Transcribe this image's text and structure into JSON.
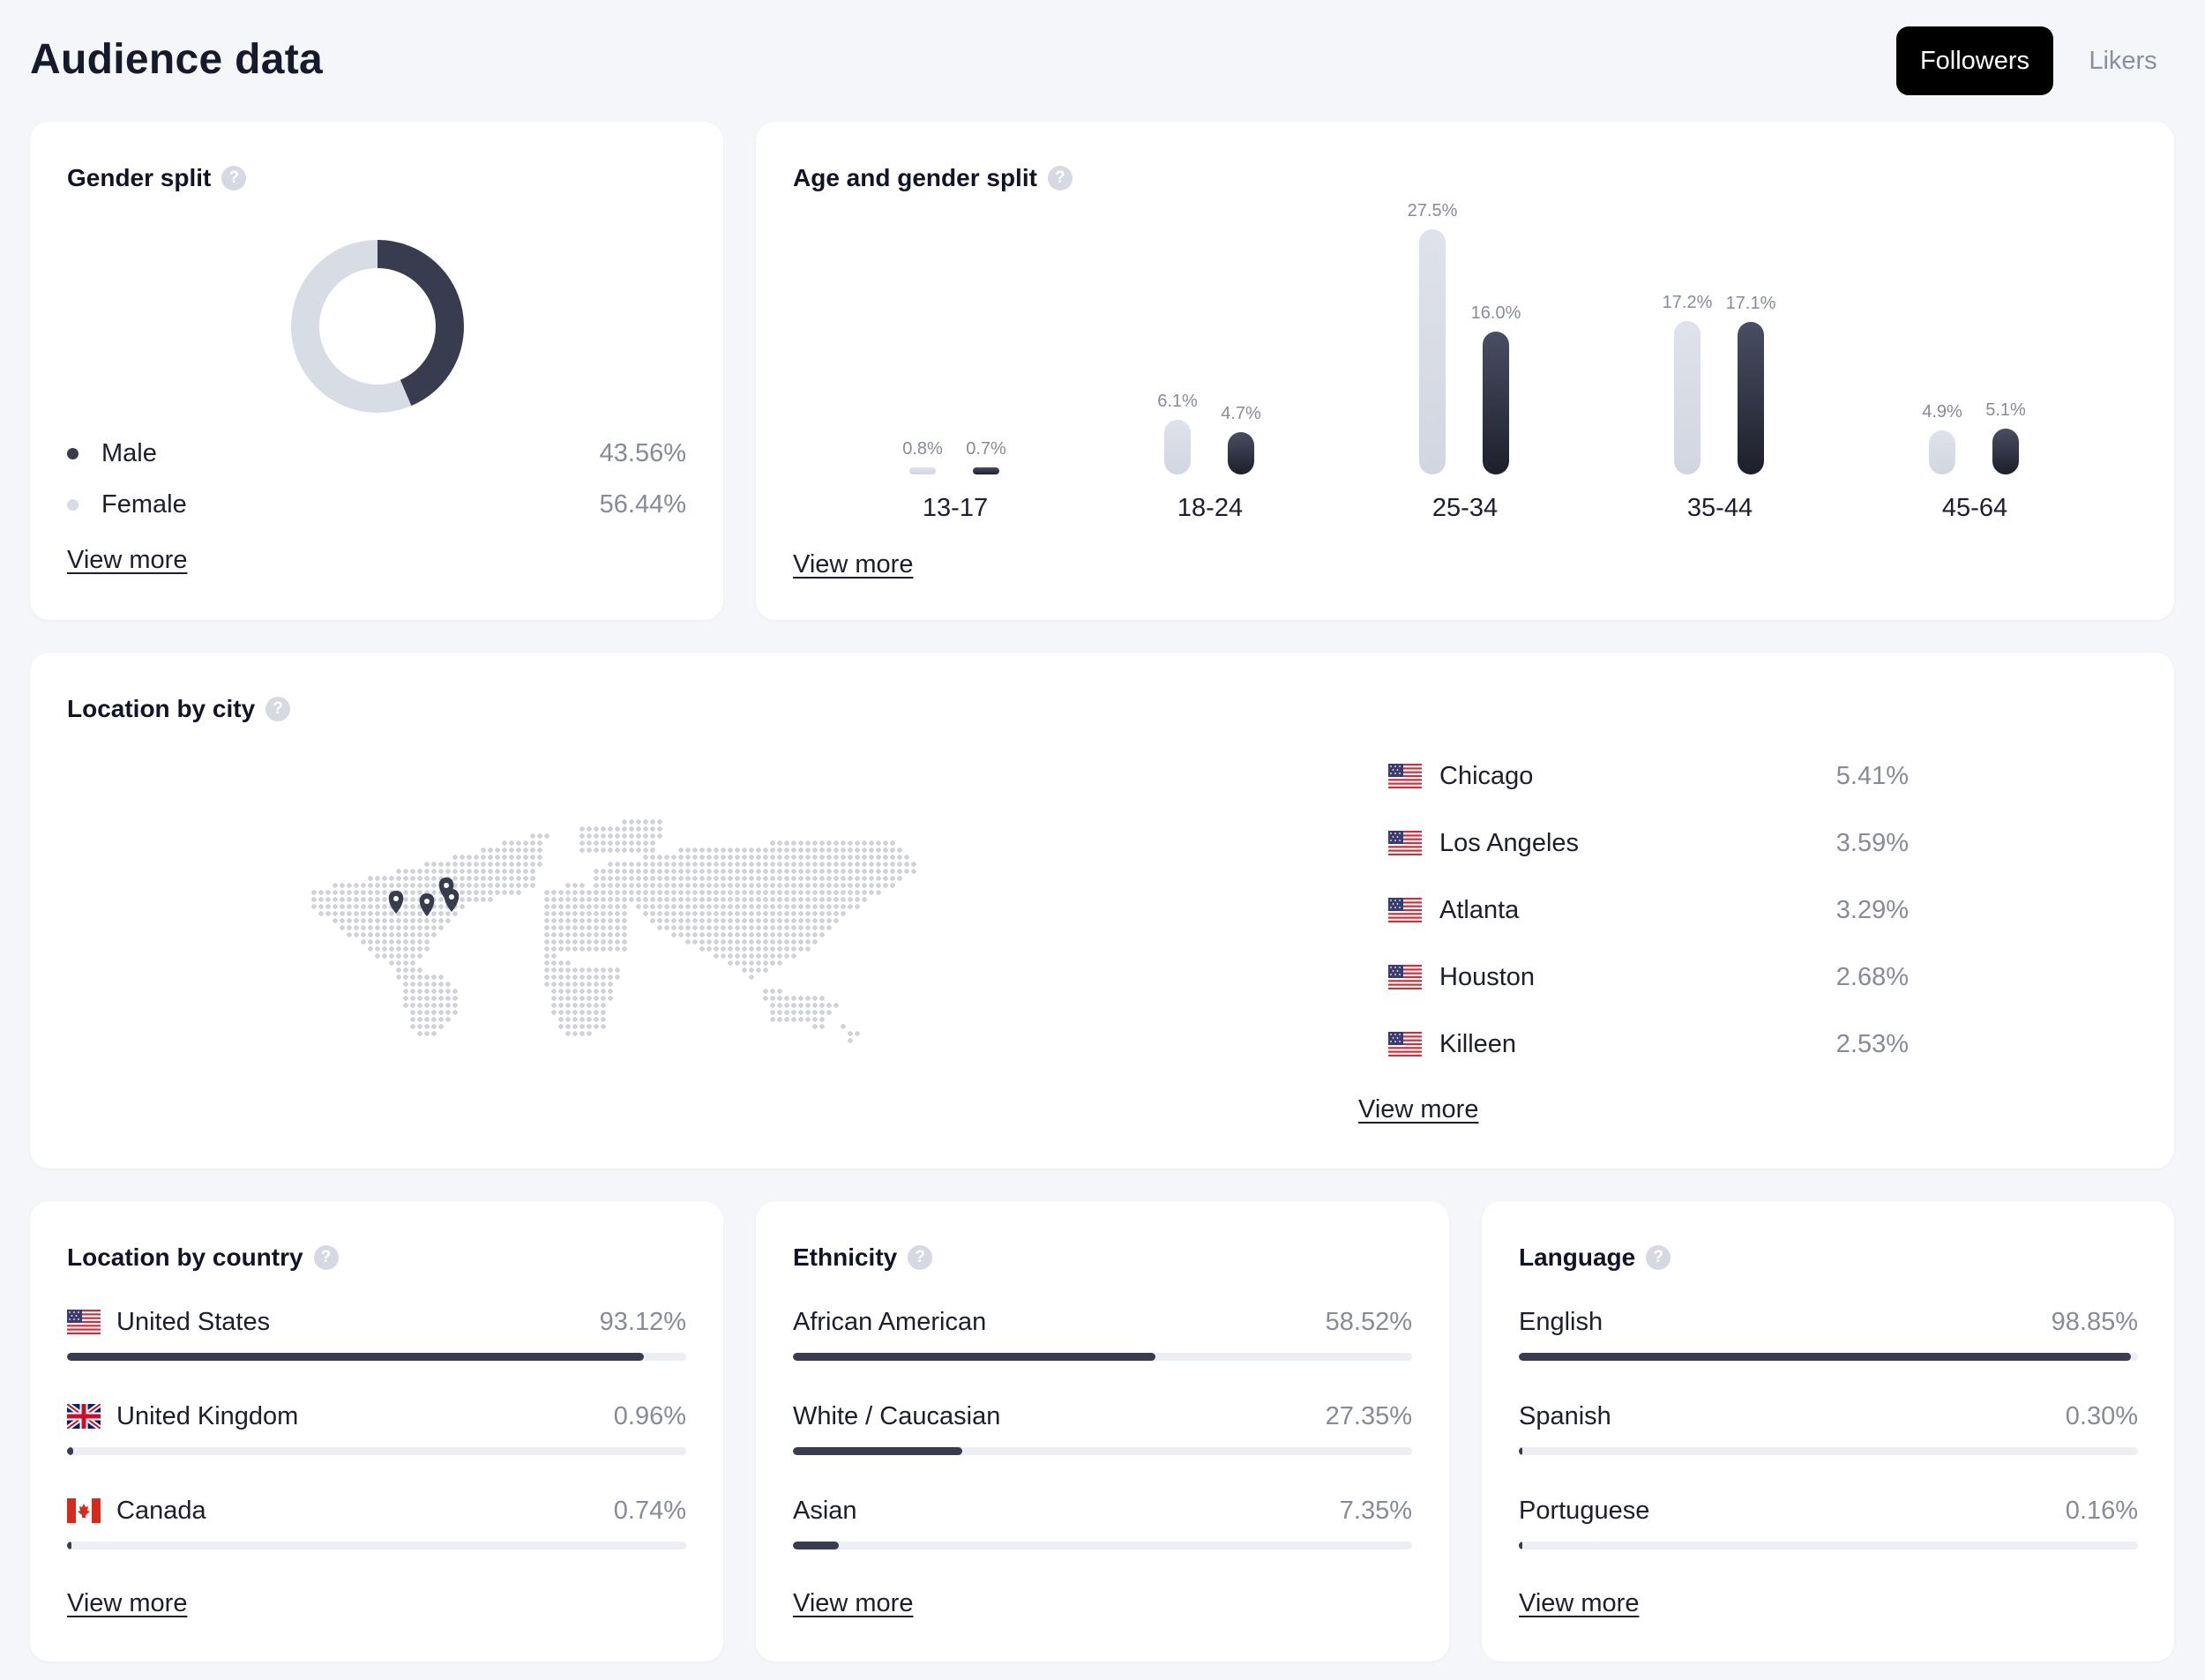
{
  "page": {
    "title": "Audience data"
  },
  "toggle": {
    "followers": "Followers",
    "likers": "Likers",
    "active": "Followers"
  },
  "help_glyph": "?",
  "colors": {
    "male": "#393c4f",
    "female": "#d8dce5",
    "accent": "#000000"
  },
  "gender": {
    "title": "Gender split",
    "items": [
      {
        "label": "Male",
        "value": "43.56%",
        "share": 43.56
      },
      {
        "label": "Female",
        "value": "56.44%",
        "share": 56.44
      }
    ],
    "view_more": "View more"
  },
  "age": {
    "title": "Age and gender split",
    "view_more": "View more",
    "groups": [
      {
        "label": "13-17",
        "female": "0.8%",
        "male": "0.7%",
        "female_v": 0.8,
        "male_v": 0.7
      },
      {
        "label": "18-24",
        "female": "6.1%",
        "male": "4.7%",
        "female_v": 6.1,
        "male_v": 4.7
      },
      {
        "label": "25-34",
        "female": "27.5%",
        "male": "16.0%",
        "female_v": 27.5,
        "male_v": 16.0
      },
      {
        "label": "35-44",
        "female": "17.2%",
        "male": "17.1%",
        "female_v": 17.2,
        "male_v": 17.1
      },
      {
        "label": "45-64",
        "female": "4.9%",
        "male": "5.1%",
        "female_v": 4.9,
        "male_v": 5.1
      }
    ]
  },
  "city": {
    "title": "Location by city",
    "view_more": "View more",
    "items": [
      {
        "name": "Chicago",
        "value": "5.41%",
        "flag": "us-flag-icon"
      },
      {
        "name": "Los Angeles",
        "value": "3.59%",
        "flag": "us-flag-icon"
      },
      {
        "name": "Atlanta",
        "value": "3.29%",
        "flag": "us-flag-icon"
      },
      {
        "name": "Houston",
        "value": "2.68%",
        "flag": "us-flag-icon"
      },
      {
        "name": "Killeen",
        "value": "2.53%",
        "flag": "us-flag-icon"
      }
    ]
  },
  "country": {
    "title": "Location by country",
    "view_more": "View more",
    "items": [
      {
        "name": "United States",
        "value": "93.12%",
        "pct": 93.12,
        "flag": "us-flag-icon"
      },
      {
        "name": "United Kingdom",
        "value": "0.96%",
        "pct": 0.96,
        "flag": "uk-flag-icon"
      },
      {
        "name": "Canada",
        "value": "0.74%",
        "pct": 0.74,
        "flag": "canada-flag-icon"
      }
    ]
  },
  "ethnicity": {
    "title": "Ethnicity",
    "view_more": "View more",
    "items": [
      {
        "name": "African American",
        "value": "58.52%",
        "pct": 58.52
      },
      {
        "name": "White / Caucasian",
        "value": "27.35%",
        "pct": 27.35
      },
      {
        "name": "Asian",
        "value": "7.35%",
        "pct": 7.35
      }
    ]
  },
  "language": {
    "title": "Language",
    "view_more": "View more",
    "items": [
      {
        "name": "English",
        "value": "98.85%",
        "pct": 98.85
      },
      {
        "name": "Spanish",
        "value": "0.30%",
        "pct": 0.3
      },
      {
        "name": "Portuguese",
        "value": "0.16%",
        "pct": 0.16
      }
    ]
  }
}
